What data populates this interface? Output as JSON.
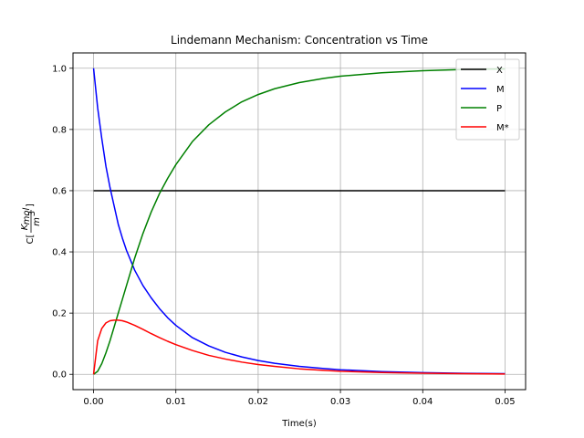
{
  "chart_data": {
    "type": "line",
    "title": "Lindemann Mechanism: Concentration vs Time",
    "xlabel": "Time(s)",
    "ylabel_prefix": "C[",
    "ylabel_numerator": "K",
    "ylabel_numerator_sub": "mol",
    "ylabel_denominator": "m",
    "ylabel_denominator_sup": "3",
    "ylabel_suffix": "]",
    "xlim": [
      -0.0025,
      0.0525
    ],
    "ylim": [
      -0.05,
      1.05
    ],
    "xticks": [
      0.0,
      0.01,
      0.02,
      0.03,
      0.04,
      0.05
    ],
    "xtick_labels": [
      "0.00",
      "0.01",
      "0.02",
      "0.03",
      "0.04",
      "0.05"
    ],
    "yticks": [
      0.0,
      0.2,
      0.4,
      0.6,
      0.8,
      1.0
    ],
    "ytick_labels": [
      "0.0",
      "0.2",
      "0.4",
      "0.6",
      "0.8",
      "1.0"
    ],
    "grid": true,
    "legend_position": "top-right",
    "x": [
      0.0,
      0.0005,
      0.001,
      0.0015,
      0.002,
      0.0025,
      0.003,
      0.0035,
      0.004,
      0.005,
      0.006,
      0.007,
      0.008,
      0.009,
      0.01,
      0.012,
      0.014,
      0.016,
      0.018,
      0.02,
      0.022,
      0.025,
      0.028,
      0.03,
      0.035,
      0.04,
      0.045,
      0.05
    ],
    "series": [
      {
        "name": "X",
        "color": "#000000",
        "values": [
          0.6,
          0.6,
          0.6,
          0.6,
          0.6,
          0.6,
          0.6,
          0.6,
          0.6,
          0.6,
          0.6,
          0.6,
          0.6,
          0.6,
          0.6,
          0.6,
          0.6,
          0.6,
          0.6,
          0.6,
          0.6,
          0.6,
          0.6,
          0.6,
          0.6,
          0.6,
          0.6,
          0.6
        ]
      },
      {
        "name": "M",
        "color": "#0000ff",
        "values": [
          1.0,
          0.87,
          0.77,
          0.68,
          0.61,
          0.55,
          0.49,
          0.445,
          0.405,
          0.34,
          0.29,
          0.25,
          0.215,
          0.185,
          0.16,
          0.12,
          0.093,
          0.072,
          0.057,
          0.045,
          0.036,
          0.026,
          0.019,
          0.015,
          0.009,
          0.0055,
          0.0033,
          0.002
        ]
      },
      {
        "name": "P",
        "color": "#008000",
        "values": [
          0.0,
          0.01,
          0.035,
          0.07,
          0.11,
          0.155,
          0.2,
          0.245,
          0.29,
          0.38,
          0.46,
          0.53,
          0.59,
          0.64,
          0.685,
          0.76,
          0.815,
          0.857,
          0.89,
          0.914,
          0.933,
          0.953,
          0.967,
          0.974,
          0.985,
          0.992,
          0.996,
          0.998
        ]
      },
      {
        "name": "M*",
        "color": "#ff0000",
        "values": [
          0.0,
          0.11,
          0.15,
          0.168,
          0.175,
          0.177,
          0.177,
          0.175,
          0.171,
          0.16,
          0.147,
          0.133,
          0.12,
          0.108,
          0.097,
          0.078,
          0.062,
          0.05,
          0.04,
          0.032,
          0.026,
          0.018,
          0.013,
          0.01,
          0.006,
          0.0035,
          0.002,
          0.001
        ]
      }
    ]
  }
}
